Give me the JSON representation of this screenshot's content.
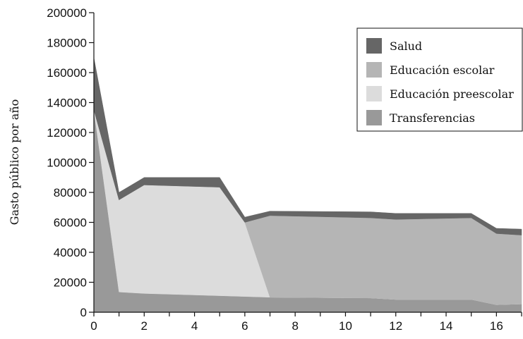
{
  "chart_data": {
    "type": "area",
    "stacked": true,
    "xlabel": "",
    "ylabel": "Gasto público por año",
    "xlim": [
      0,
      17
    ],
    "ylim": [
      0,
      200000
    ],
    "x_ticks": [
      0,
      2,
      4,
      6,
      8,
      10,
      12,
      14,
      16
    ],
    "y_ticks": [
      0,
      20000,
      40000,
      60000,
      80000,
      100000,
      120000,
      140000,
      160000,
      180000,
      200000
    ],
    "x_tick_labels": [
      "0",
      "2",
      "4",
      "6",
      "8",
      "10",
      "12",
      "14",
      "16"
    ],
    "y_tick_labels": [
      "0",
      "20000",
      "40000",
      "60000",
      "80000",
      "100000",
      "120000",
      "140000",
      "160000",
      "180000",
      "200000"
    ],
    "grid": false,
    "legend_position": "top-right",
    "x": [
      0,
      1,
      2,
      5,
      6,
      7,
      11,
      12,
      15,
      16,
      17
    ],
    "series": [
      {
        "name": "Transferencias",
        "color": "#999999",
        "values": [
          135000,
          13500,
          12500,
          11000,
          10500,
          10000,
          9500,
          8500,
          8500,
          5000,
          5500
        ]
      },
      {
        "name": "Educación preescolar",
        "color": "#dcdcdc",
        "values": [
          0,
          61500,
          72500,
          72500,
          49500,
          0,
          0,
          0,
          0,
          0,
          0
        ]
      },
      {
        "name": "Educación escolar",
        "color": "#b5b5b5",
        "values": [
          0,
          0,
          0,
          0,
          0,
          54500,
          53500,
          53500,
          54500,
          47500,
          46000
        ]
      },
      {
        "name": "Salud",
        "color": "#666666",
        "values": [
          35000,
          5000,
          5000,
          6500,
          3500,
          3000,
          4000,
          4000,
          3000,
          3500,
          4000
        ]
      }
    ],
    "legend": [
      {
        "name": "Salud",
        "color": "#666666"
      },
      {
        "name": "Educación escolar",
        "color": "#b5b5b5"
      },
      {
        "name": "Educación preescolar",
        "color": "#dcdcdc"
      },
      {
        "name": "Transferencias",
        "color": "#999999"
      }
    ]
  }
}
